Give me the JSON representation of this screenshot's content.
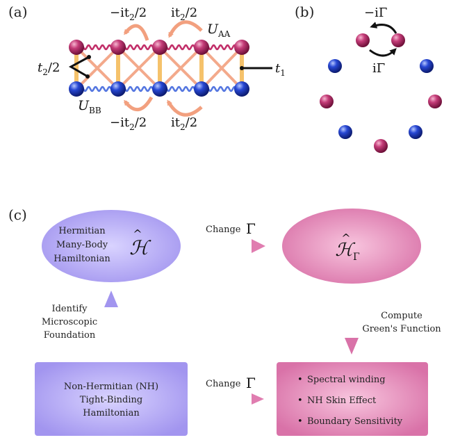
{
  "panel_labels": {
    "a": "(a)",
    "b": "(b)",
    "c": "(c)"
  },
  "panel_a": {
    "hop_top_left": "−it",
    "hop_top_left_sub": "2",
    "hop_top_left_tail": "/2",
    "hop_top_right": "it",
    "hop_top_right_sub": "2",
    "hop_top_right_tail": "/2",
    "hop_bottom_left": "−it",
    "hop_bottom_left_sub": "2",
    "hop_bottom_left_tail": "/2",
    "hop_bottom_right": "it",
    "hop_bottom_right_sub": "2",
    "hop_bottom_right_tail": "/2",
    "u_aa": "U",
    "u_aa_sub": "AA",
    "u_bb": "U",
    "u_bb_sub": "BB",
    "t2_label": "t",
    "t2_sub": "2",
    "t2_tail": "/2",
    "t1_label": "t",
    "t1_sub": "1"
  },
  "panel_b": {
    "loss_label": "−iΓ",
    "gain_label": "iΓ"
  },
  "panel_c": {
    "hermitian_box": [
      "Hermitian",
      "Many-Body",
      "Hamiltonian"
    ],
    "hermitian_symbol": "ℋ",
    "gamma_symbol": "ℋ",
    "gamma_symbol_sub": "Γ",
    "change_top": "Change",
    "change_top_gamma": "Γ",
    "change_bottom": "Change",
    "change_bottom_gamma": "Γ",
    "identify_label": [
      "Identify",
      "Microscopic",
      "Foundation"
    ],
    "compute_label": [
      "Compute",
      "Green's Function"
    ],
    "nh_box": [
      "Non-Hermitian (NH)",
      "Tight-Binding",
      "Hamiltonian"
    ],
    "results": [
      "Spectral winding",
      "NH Skin Effect",
      "Boundary Sensitivity"
    ],
    "bullet": "•"
  },
  "colors": {
    "magenta_site": "#b03060",
    "blue_site": "#1f3fbf",
    "salmon": "#f2a07f",
    "rung": "#f5c26b",
    "wave_top": "#c2306a",
    "wave_bottom": "#5577e0",
    "lavender": "#a89ef0",
    "pink": "#dd7fb0"
  }
}
